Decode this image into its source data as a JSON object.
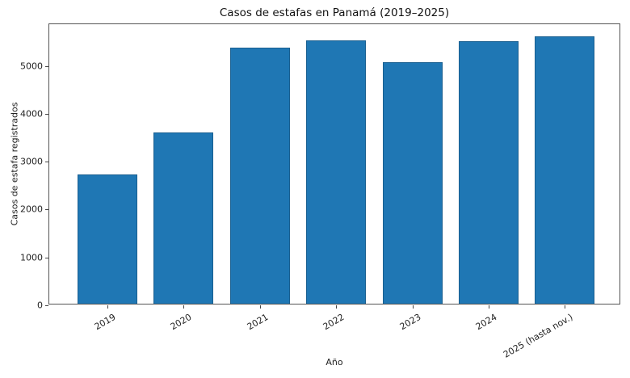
{
  "chart_data": {
    "type": "bar",
    "title": "Casos de estafas en Panamá (2019–2025)",
    "xlabel": "Año",
    "ylabel": "Casos de estafa registrados",
    "categories": [
      "2019",
      "2020",
      "2021",
      "2022",
      "2023",
      "2024",
      "2025 (hasta nov.)"
    ],
    "values": [
      2700,
      3580,
      5340,
      5500,
      5050,
      5480,
      5580
    ],
    "ylim": [
      0,
      5870
    ],
    "yticks": [
      0,
      1000,
      2000,
      3000,
      4000,
      5000
    ],
    "grid": false,
    "legend": null,
    "bar_color": "#1f77b4",
    "xtick_rotation": 30
  }
}
